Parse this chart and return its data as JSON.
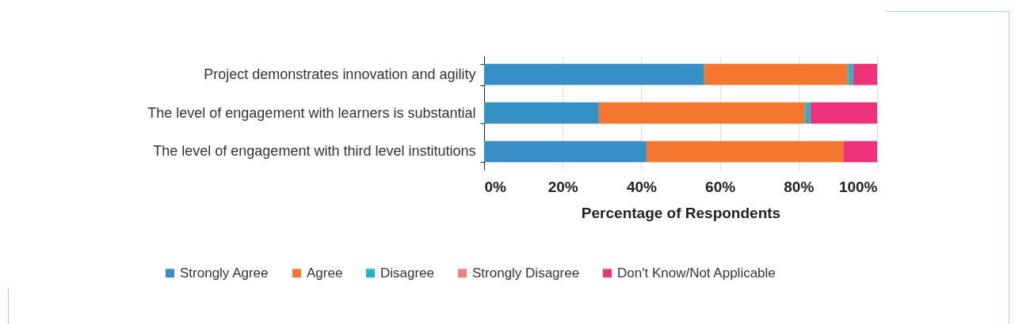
{
  "chart_data": {
    "type": "bar",
    "orientation": "horizontal",
    "stacked": true,
    "xlabel": "Percentage of Respondents",
    "categories": [
      "Project demonstrates innovation and agility",
      "The level of engagement with learners is substantial",
      "The level of engagement with third level institutions"
    ],
    "series": [
      {
        "name": "Strongly Agree",
        "color": "#3591c5",
        "values": [
          56.0,
          29.2,
          41.3
        ]
      },
      {
        "name": "Agree",
        "color": "#f3772e",
        "values": [
          36.6,
          52.5,
          50.1
        ]
      },
      {
        "name": "Disagree",
        "color": "#1fb5c9",
        "values": [
          1.3,
          1.3,
          0
        ]
      },
      {
        "name": "Strongly Disagree",
        "color": "#f27f7f",
        "values": [
          0,
          0,
          0
        ]
      },
      {
        "name": "Don't Know/Not Applicable",
        "color": "#ee327a",
        "values": [
          6.1,
          17.0,
          8.6
        ]
      }
    ],
    "xlim": [
      0,
      100
    ],
    "xticks": [
      {
        "value": 0,
        "label": "0%"
      },
      {
        "value": 20,
        "label": "20%"
      },
      {
        "value": 40,
        "label": "40%"
      },
      {
        "value": 60,
        "label": "60%"
      },
      {
        "value": 80,
        "label": "80%"
      },
      {
        "value": 100,
        "label": "100%"
      }
    ],
    "grid": "x",
    "legend": "bottom"
  }
}
